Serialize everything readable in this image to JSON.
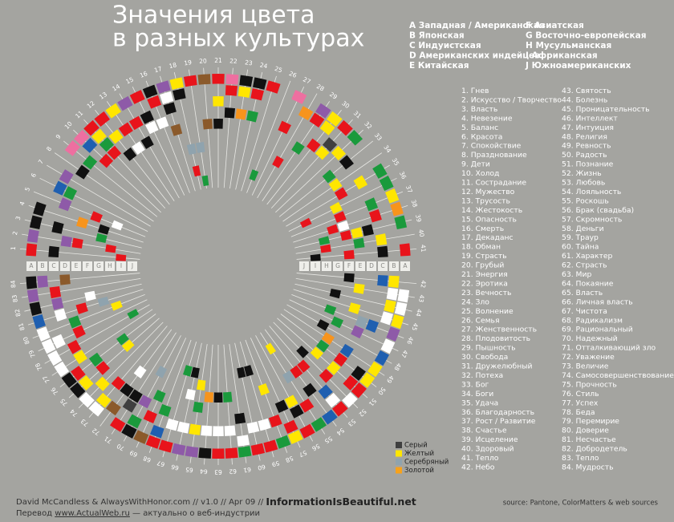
{
  "title": [
    "Значения цвета",
    "в разных культурах"
  ],
  "cultures": [
    {
      "letter": "A",
      "name": "Западная / Американская"
    },
    {
      "letter": "B",
      "name": "Японская"
    },
    {
      "letter": "C",
      "name": "Индуистская"
    },
    {
      "letter": "D",
      "name": "Американских индейцев"
    },
    {
      "letter": "E",
      "name": "Китайская"
    },
    {
      "letter": "F",
      "name": "Азиатская"
    },
    {
      "letter": "G",
      "name": "Восточно-европейская"
    },
    {
      "letter": "H",
      "name": "Мусульманская"
    },
    {
      "letter": "I",
      "name": "Африканская"
    },
    {
      "letter": "J",
      "name": "Южноамериканских"
    }
  ],
  "meanings": [
    {
      "num": "1.",
      "name": "Гнев"
    },
    {
      "num": "2.",
      "name": "Искусство / Творчество"
    },
    {
      "num": "3.",
      "name": "Власть"
    },
    {
      "num": "4.",
      "name": "Невезение"
    },
    {
      "num": "5.",
      "name": "Баланс"
    },
    {
      "num": "6.",
      "name": "Красота"
    },
    {
      "num": "7.",
      "name": "Спокойствие"
    },
    {
      "num": "8.",
      "name": "Празднование"
    },
    {
      "num": "9.",
      "name": "Дети"
    },
    {
      "num": "10.",
      "name": "Холод"
    },
    {
      "num": "11.",
      "name": "Сострадание"
    },
    {
      "num": "12.",
      "name": "Мужество"
    },
    {
      "num": "13.",
      "name": "Трусость"
    },
    {
      "num": "14.",
      "name": "Жестокость"
    },
    {
      "num": "15.",
      "name": "Опасность"
    },
    {
      "num": "16.",
      "name": "Смерть"
    },
    {
      "num": "17.",
      "name": "Декаданс"
    },
    {
      "num": "18.",
      "name": "Обман"
    },
    {
      "num": "19.",
      "name": "Страсть"
    },
    {
      "num": "20.",
      "name": "Грубый"
    },
    {
      "num": "21.",
      "name": "Энергия"
    },
    {
      "num": "22.",
      "name": "Эротика"
    },
    {
      "num": "23.",
      "name": "Вечность"
    },
    {
      "num": "24.",
      "name": "Зло"
    },
    {
      "num": "25.",
      "name": "Волнение"
    },
    {
      "num": "26.",
      "name": "Семья"
    },
    {
      "num": "27.",
      "name": "Женственность"
    },
    {
      "num": "28.",
      "name": "Плодовитость"
    },
    {
      "num": "29.",
      "name": "Пышность"
    },
    {
      "num": "30.",
      "name": "Свобода"
    },
    {
      "num": "31.",
      "name": "Дружелюбный"
    },
    {
      "num": "32.",
      "name": "Потеха"
    },
    {
      "num": "33.",
      "name": "Бог"
    },
    {
      "num": "34.",
      "name": "Боги"
    },
    {
      "num": "35.",
      "name": "Удача"
    },
    {
      "num": "36.",
      "name": "Благодарность"
    },
    {
      "num": "37.",
      "name": "Рост / Развитие"
    },
    {
      "num": "38.",
      "name": "Счастье"
    },
    {
      "num": "39.",
      "name": "Исцеление"
    },
    {
      "num": "40.",
      "name": "Здоровый"
    },
    {
      "num": "41.",
      "name": "Тепло"
    },
    {
      "num": "42.",
      "name": "Небо"
    },
    {
      "num": "43.",
      "name": "Святость"
    },
    {
      "num": "44.",
      "name": "Болезнь"
    },
    {
      "num": "45.",
      "name": "Проницательность"
    },
    {
      "num": "46.",
      "name": "Интеллект"
    },
    {
      "num": "47.",
      "name": "Интуиция"
    },
    {
      "num": "48.",
      "name": "Религия"
    },
    {
      "num": "49.",
      "name": "Ревность"
    },
    {
      "num": "50.",
      "name": "Радость"
    },
    {
      "num": "51.",
      "name": "Познание"
    },
    {
      "num": "52.",
      "name": "Жизнь"
    },
    {
      "num": "53.",
      "name": "Любовь"
    },
    {
      "num": "54.",
      "name": "Лояльность"
    },
    {
      "num": "55.",
      "name": "Роскошь"
    },
    {
      "num": "56.",
      "name": "Брак (свадьба)"
    },
    {
      "num": "57.",
      "name": "Скромность"
    },
    {
      "num": "58.",
      "name": "Деньги"
    },
    {
      "num": "59.",
      "name": "Траур"
    },
    {
      "num": "60.",
      "name": "Тайна"
    },
    {
      "num": "61.",
      "name": "Характер"
    },
    {
      "num": "62.",
      "name": "Страсть"
    },
    {
      "num": "63.",
      "name": "Мир"
    },
    {
      "num": "64.",
      "name": "Покаяние"
    },
    {
      "num": "65.",
      "name": "Власть"
    },
    {
      "num": "66.",
      "name": "Личная власть"
    },
    {
      "num": "67.",
      "name": "Чистота"
    },
    {
      "num": "68.",
      "name": "Радикализм"
    },
    {
      "num": "69.",
      "name": "Рациональный"
    },
    {
      "num": "70.",
      "name": "Надежный"
    },
    {
      "num": "71.",
      "name": "Отталкивающий зло"
    },
    {
      "num": "72.",
      "name": "Уважение"
    },
    {
      "num": "73.",
      "name": "Величие"
    },
    {
      "num": "74.",
      "name": "Самосовершенствование"
    },
    {
      "num": "75.",
      "name": "Прочность"
    },
    {
      "num": "76.",
      "name": "Стиль"
    },
    {
      "num": "77.",
      "name": "Успех"
    },
    {
      "num": "78.",
      "name": "Беда"
    },
    {
      "num": "79.",
      "name": "Перемирие"
    },
    {
      "num": "80.",
      "name": "Доверие"
    },
    {
      "num": "81.",
      "name": "Несчастье"
    },
    {
      "num": "82.",
      "name": "Добродетель"
    },
    {
      "num": "83.",
      "name": "Тепло"
    },
    {
      "num": "84.",
      "name": "Мудрость"
    }
  ],
  "wheel": {
    "spokes": [
      1,
      2,
      3,
      4,
      5,
      6,
      7,
      8,
      9,
      10,
      11,
      12,
      13,
      14,
      15,
      16,
      17,
      18,
      19,
      20,
      21,
      22,
      23,
      24,
      25,
      26,
      27,
      28,
      29,
      30,
      31,
      32,
      33,
      34,
      35,
      36,
      37,
      38,
      39,
      40,
      41,
      42,
      43,
      44,
      45,
      46,
      47,
      48,
      49,
      50,
      51,
      52,
      53,
      54,
      55,
      56,
      57,
      58,
      59,
      60,
      61,
      62,
      63,
      64,
      65,
      66,
      67,
      68,
      69,
      70,
      71,
      72,
      73,
      74,
      75,
      76,
      77,
      78,
      79,
      80,
      81,
      82,
      83,
      84
    ],
    "palette": {
      "r": "#e8141b",
      "k": "#111111",
      "w": "#ffffff",
      "y": "#ffe600",
      "g": "#1a9a3c",
      "b": "#1f5fb0",
      "o": "#f7941d",
      "p": "#8e5aa8",
      "n": "#8b5a2b",
      "i": "#ee6fa0",
      "s": "#8fa3ae",
      "d": "#3f3f3f",
      "l": "#f7a21b"
    },
    "cells": [
      "r.k.....r.",
      "p..pr..r..",
      "k.k...g...",
      "k...o.k...",
      "..p..r.w..",
      ".bg.......",
      ".p........",
      "..k.......",
      "i.g.......",
      "ib.r......",
      "rygr......",
      "r.y.k.....",
      "y.r.w.....",
      "p.r.k.....",
      "r.kw......",
      "kr.w......",
      "pwk.n.....",
      "yk....s.r.",
      "r.....s..g",
      "n...n.....",
      "r.y.k.....",
      "ir.k......",
      "ky.o......",
      "kr.g......",
      "r.........",
      "........g.",
      "i..r......",
      ".o....r...",
      "pr..g.....",
      "yy.r......",
      "r.dy......",
      "g.y.......",
      "..k.g.....",
      "....y.....",
      "g.y.r.....",
      "g....y..r.",
      "y.g..r....",
      "o.r..wr...",
      "g..kyr.g..",
      "..y.g..r..",
      "r.k..r..k.",
      ".yb..k....",
      "ww..y.....",
      "wy....k...",
      "yw..y.....",
      "p.bs..g...",
      "w..p.g....",
      "b.....k...",
      "y..b.o....",
      "yk.r.g....",
      "rr.y.y....",
      "w..r..k...",
      "rwb..r....",
      "b..k.r....",
      "g.r..s..y.",
      "r.ky......",
      "yr.k......",
      "g.r..y....",
      "r.w....k..",
      "r.w....k..",
      "gw.k......",
      "r.w..g....",
      "r.w..k....",
      "k.w..o....",
      "p.y.g.y...",
      "p.w..w.k..",
      "r.w....g..",
      "rb.g......",
      "n.r.g.....",
      "kg.p..s...",
      "r.dk......",
      ".n.k.w....",
      "wy.r......",
      "w.y.......",
      "ky.r..y...",
      "kr.g..g...",
      "w.y.......",
      "w.r.....g.",
      "ww.r......",
      "w..g...y..",
      "b.w.r.s...",
      "k.p..w....",
      "p.r.......",
      "kp.n......"
    ]
  },
  "legend": [
    {
      "code": "d",
      "label": "Серый"
    },
    {
      "code": "y",
      "label": "Желтый"
    },
    {
      "code": "s",
      "label": "Серебряный"
    },
    {
      "code": "l",
      "label": "Золотой"
    }
  ],
  "credits": {
    "authors": "David McCandless & AlwaysWithHonor.com",
    "version": "// v1.0 // Apr 09 //",
    "site": "InformationIsBeautiful.net",
    "translation": "Перевод",
    "translation_link": "www.ActualWeb.ru",
    "translation_note": "— актуально о веб-индустрии",
    "source": "source: Pantone, ColorMatters & web sources"
  }
}
